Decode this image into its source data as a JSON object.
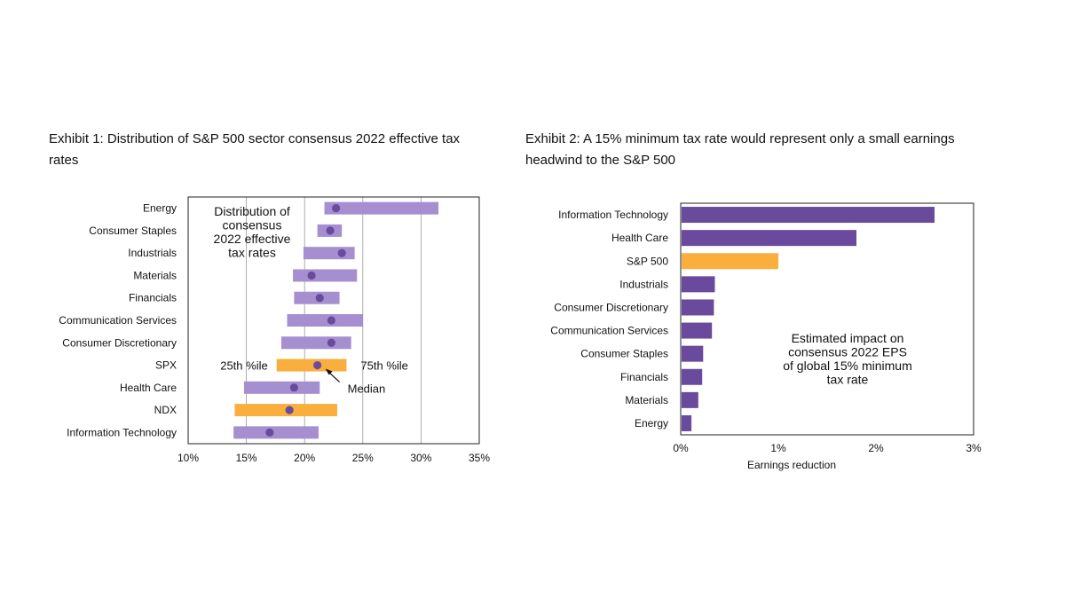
{
  "exhibit1": {
    "title": "Exhibit 1: Distribution of S&P 500 sector consensus 2022 effective tax rates"
  },
  "exhibit2": {
    "title": "Exhibit 2: A 15% minimum tax rate would represent only a small earnings headwind to the S&P 500"
  },
  "chart_data": [
    {
      "type": "range-bar",
      "title": "Exhibit 1: Distribution of S&P 500 sector consensus 2022 effective tax rates",
      "annotation": [
        "Distribution of",
        "consensus",
        "2022 effective",
        "tax rates"
      ],
      "xlim": [
        10,
        35
      ],
      "xticks": [
        "10%",
        "15%",
        "20%",
        "25%",
        "30%",
        "35%"
      ],
      "grid": true,
      "labels": {
        "p25": "25th %ile",
        "p75": "75th %ile",
        "median": "Median"
      },
      "colors": {
        "sector": "#a58fd0",
        "index": "#f9ae3e",
        "median": "#6a4a9c"
      },
      "rows": [
        {
          "name": "Energy",
          "p25": 21.7,
          "median": 22.7,
          "p75": 31.5,
          "index": false
        },
        {
          "name": "Consumer Staples",
          "p25": 21.1,
          "median": 22.2,
          "p75": 23.2,
          "index": false
        },
        {
          "name": "Industrials",
          "p25": 19.9,
          "median": 23.2,
          "p75": 24.3,
          "index": false
        },
        {
          "name": "Materials",
          "p25": 19.0,
          "median": 20.6,
          "p75": 24.5,
          "index": false
        },
        {
          "name": "Financials",
          "p25": 19.1,
          "median": 21.3,
          "p75": 23.0,
          "index": false
        },
        {
          "name": "Communication Services",
          "p25": 18.5,
          "median": 22.3,
          "p75": 25.0,
          "index": false
        },
        {
          "name": "Consumer Discretionary",
          "p25": 18.0,
          "median": 22.3,
          "p75": 24.0,
          "index": false
        },
        {
          "name": "SPX",
          "p25": 17.6,
          "median": 21.1,
          "p75": 23.6,
          "index": true
        },
        {
          "name": "Health Care",
          "p25": 14.8,
          "median": 19.1,
          "p75": 21.3,
          "index": false
        },
        {
          "name": "NDX",
          "p25": 14.0,
          "median": 18.7,
          "p75": 22.8,
          "index": true
        },
        {
          "name": "Information Technology",
          "p25": 13.9,
          "median": 17.0,
          "p75": 21.2,
          "index": false
        }
      ]
    },
    {
      "type": "bar",
      "orientation": "horizontal",
      "title": "Exhibit 2: A 15% minimum tax rate would represent only a small earnings headwind to the S&P 500",
      "annotation": [
        "Estimated impact on",
        "consensus 2022 EPS",
        "of global 15% minimum",
        "tax rate"
      ],
      "xlabel": "Earnings reduction",
      "xlim": [
        0,
        3
      ],
      "xticks": [
        "0%",
        "1%",
        "2%",
        "3%"
      ],
      "grid": false,
      "colors": {
        "sector": "#6a4a9c",
        "index": "#f9ae3e"
      },
      "categories": [
        "Information Technology",
        "Health Care",
        "S&P 500",
        "Industrials",
        "Consumer Discretionary",
        "Communication Services",
        "Consumer Staples",
        "Financials",
        "Materials",
        "Energy"
      ],
      "values": [
        2.6,
        1.8,
        1.0,
        0.35,
        0.34,
        0.32,
        0.23,
        0.22,
        0.18,
        0.11
      ],
      "highlight": "S&P 500"
    }
  ]
}
